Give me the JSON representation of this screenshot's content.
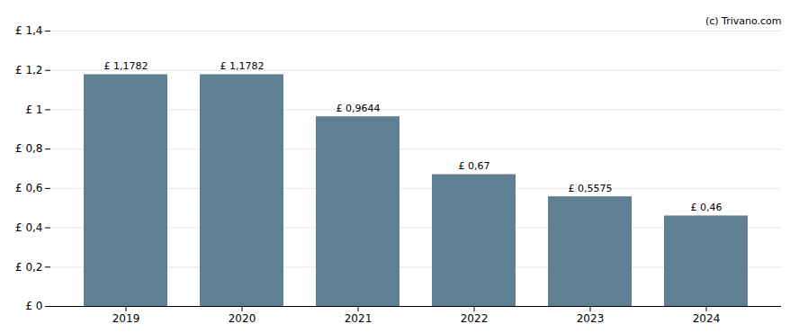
{
  "chart_data": {
    "type": "bar",
    "annotation": "(c) Trivano.com",
    "categories": [
      "2019",
      "2020",
      "2021",
      "2022",
      "2023",
      "2024"
    ],
    "values": [
      1.1782,
      1.1782,
      0.9644,
      0.67,
      0.5575,
      0.46
    ],
    "value_labels": [
      "£ 1,1782",
      "£ 1,1782",
      "£ 0,9644",
      "£ 0,67",
      "£ 0,5575",
      "£ 0,46"
    ],
    "color": "#5f7f93",
    "ylim": [
      0,
      1.4
    ],
    "yticks": [
      {
        "value": 0,
        "label": "£ 0"
      },
      {
        "value": 0.2,
        "label": "£ 0,2"
      },
      {
        "value": 0.4,
        "label": "£ 0,4"
      },
      {
        "value": 0.6,
        "label": "£ 0,6"
      },
      {
        "value": 0.8,
        "label": "£ 0,8"
      },
      {
        "value": 1.0,
        "label": "£ 1"
      },
      {
        "value": 1.2,
        "label": "£ 1,2"
      },
      {
        "value": 1.4,
        "label": "£ 1,4"
      }
    ],
    "grid": true,
    "data_labels": true
  }
}
